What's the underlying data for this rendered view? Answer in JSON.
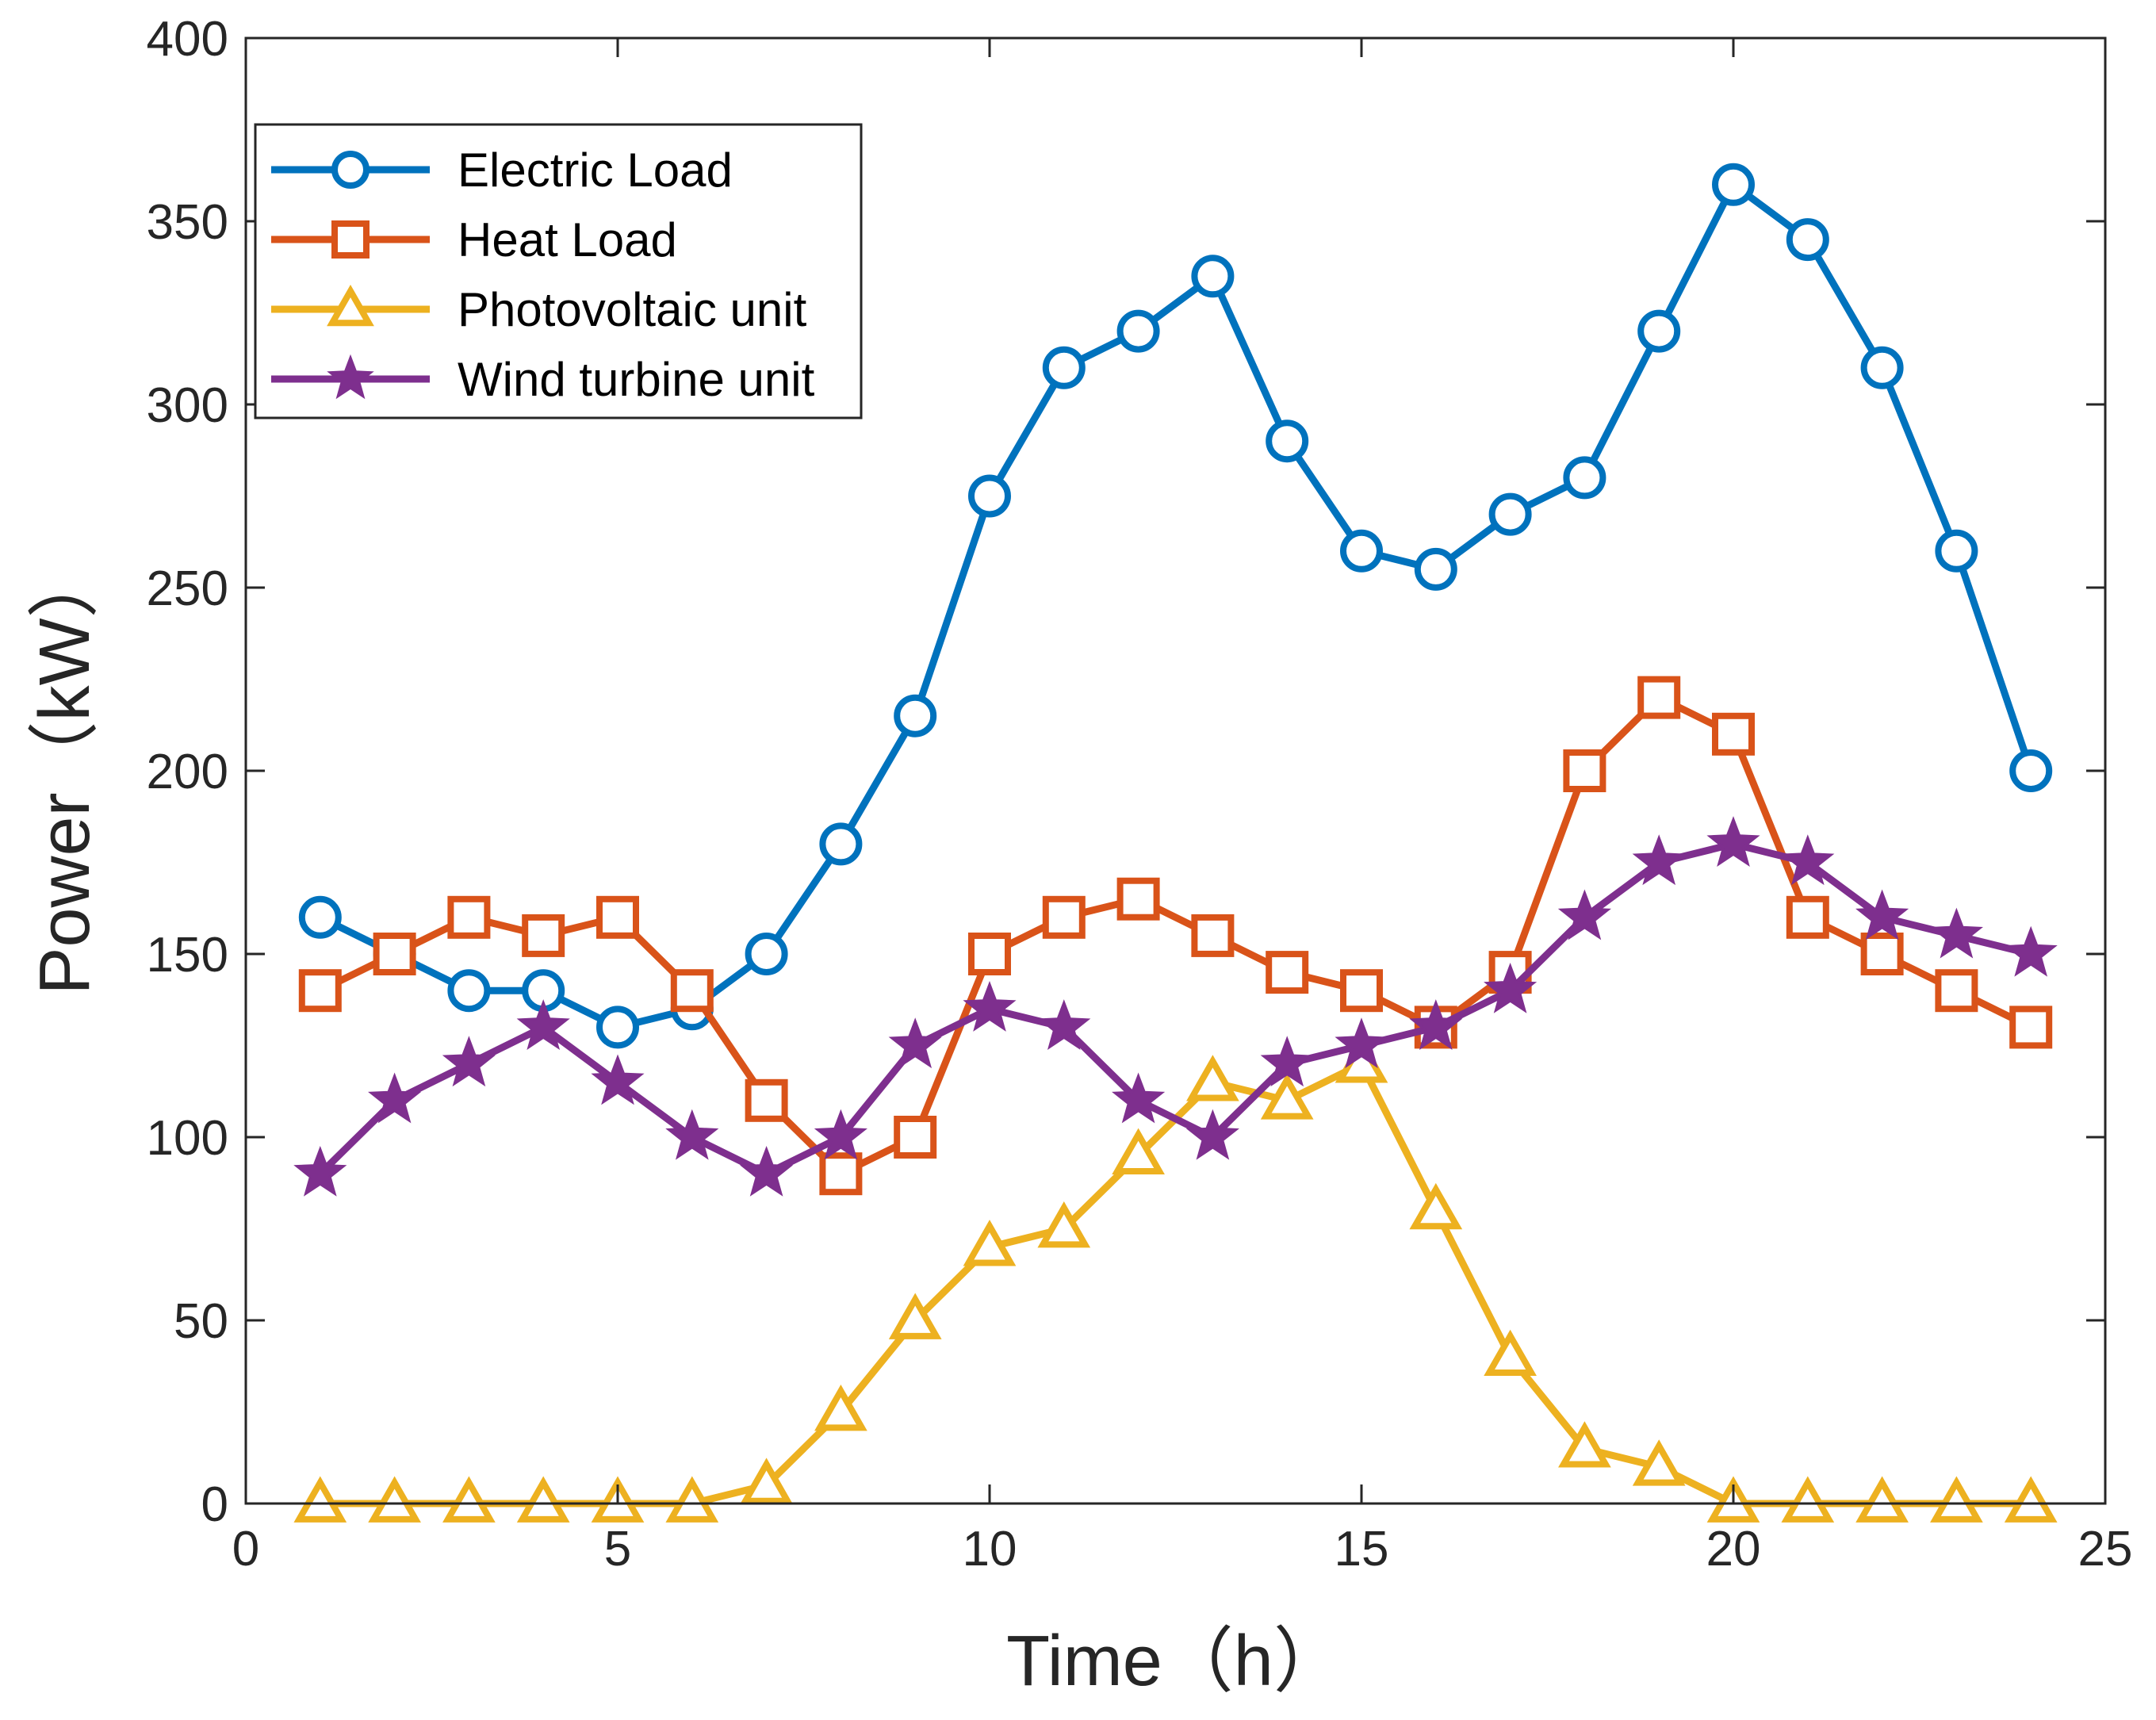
{
  "chart_data": {
    "type": "line",
    "xlabel": "Time（h）",
    "ylabel": "Power（kW）",
    "xlim": [
      0,
      25
    ],
    "ylim": [
      0,
      400
    ],
    "xticks": [
      0,
      5,
      10,
      15,
      20,
      25
    ],
    "yticks": [
      0,
      50,
      100,
      150,
      200,
      250,
      300,
      350,
      400
    ],
    "grid": false,
    "legend_position": "top-left",
    "x": [
      1,
      2,
      3,
      4,
      5,
      6,
      7,
      8,
      9,
      10,
      11,
      12,
      13,
      14,
      15,
      16,
      17,
      18,
      19,
      20,
      21,
      22,
      23,
      24
    ],
    "series": [
      {
        "name": "Electric Load",
        "color": "#0072BD",
        "marker": "circle",
        "values": [
          160,
          150,
          140,
          140,
          130,
          135,
          150,
          180,
          215,
          275,
          310,
          320,
          335,
          290,
          260,
          255,
          270,
          280,
          320,
          360,
          345,
          310,
          260,
          200
        ]
      },
      {
        "name": "Heat Load",
        "color": "#D95319",
        "marker": "square",
        "values": [
          140,
          150,
          160,
          155,
          160,
          140,
          110,
          90,
          100,
          150,
          160,
          165,
          155,
          145,
          140,
          130,
          145,
          200,
          220,
          210,
          160,
          150,
          140,
          130
        ]
      },
      {
        "name": "Photovoltaic unit",
        "color": "#EDB120",
        "marker": "triangle",
        "values": [
          0,
          0,
          0,
          0,
          0,
          0,
          5,
          25,
          50,
          70,
          75,
          95,
          115,
          110,
          120,
          80,
          40,
          15,
          10,
          0,
          0,
          0,
          0,
          0
        ]
      },
      {
        "name": "Wind turbine unit",
        "color": "#7E2F8E",
        "marker": "star",
        "values": [
          90,
          110,
          120,
          130,
          115,
          100,
          90,
          100,
          125,
          135,
          130,
          110,
          100,
          120,
          125,
          130,
          140,
          160,
          175,
          180,
          175,
          160,
          155,
          150
        ]
      }
    ]
  }
}
